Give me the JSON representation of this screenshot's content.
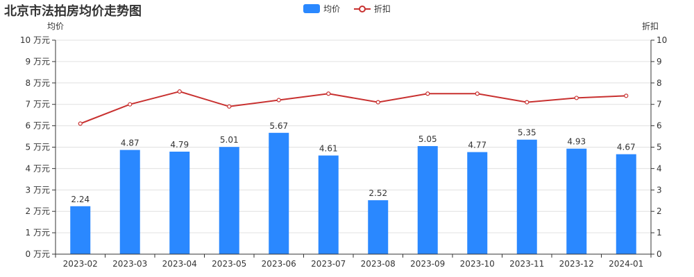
{
  "chart_data": {
    "type": "bar",
    "title": "北京市法拍房均价走势图",
    "categories": [
      "2023-02",
      "2023-03",
      "2023-04",
      "2023-05",
      "2023-06",
      "2023-07",
      "2023-08",
      "2023-09",
      "2023-10",
      "2023-11",
      "2023-12",
      "2024-01"
    ],
    "series": [
      {
        "name": "均价",
        "type": "bar",
        "axis": "left",
        "color": "#2a88ff",
        "values": [
          2.24,
          4.87,
          4.79,
          5.01,
          5.67,
          4.61,
          2.52,
          5.05,
          4.77,
          5.35,
          4.93,
          4.67
        ],
        "data_labels": [
          "2.24",
          "4.87",
          "4.79",
          "5.01",
          "5.67",
          "4.61",
          "2.52",
          "5.05",
          "4.77",
          "5.35",
          "4.93",
          "4.67"
        ]
      },
      {
        "name": "折扣",
        "type": "line",
        "axis": "right",
        "color": "#c8302f",
        "values": [
          6.1,
          7.0,
          7.6,
          6.9,
          7.2,
          7.5,
          7.1,
          7.5,
          7.5,
          7.1,
          7.3,
          7.4
        ]
      }
    ],
    "y_left": {
      "label": "均价",
      "min": 0,
      "max": 10,
      "step": 1,
      "tick_labels": [
        "0 万元",
        "1 万元",
        "2 万元",
        "3 万元",
        "4 万元",
        "5 万元",
        "6 万元",
        "7 万元",
        "8 万元",
        "9 万元",
        "10 万元"
      ]
    },
    "y_right": {
      "label": "折扣",
      "min": 0,
      "max": 10,
      "step": 1,
      "tick_labels": [
        "0",
        "1",
        "2",
        "3",
        "4",
        "5",
        "6",
        "7",
        "8",
        "9",
        "10"
      ]
    },
    "grid": true,
    "legend_position": "top-center"
  }
}
